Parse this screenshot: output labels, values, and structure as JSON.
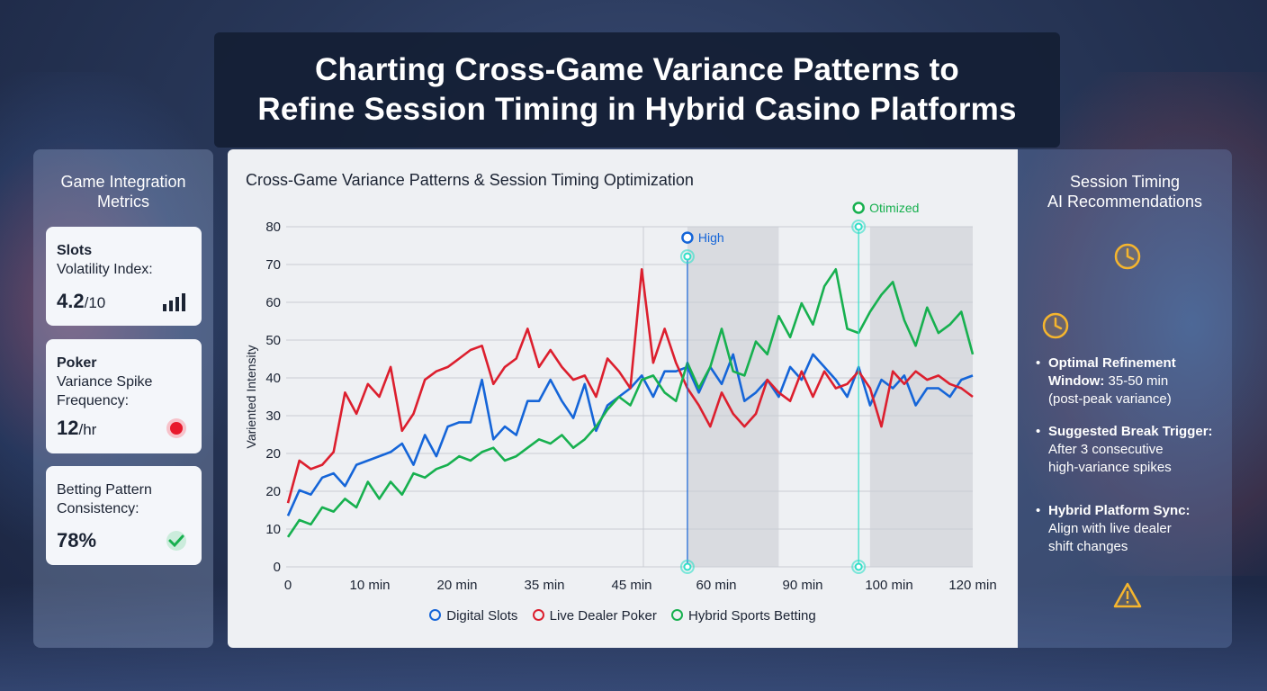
{
  "title_lines": [
    "Charting Cross-Game Variance Patterns to",
    "Refine Session Timing in Hybrid Casino Platforms"
  ],
  "left_panel": {
    "title": "Game Integration\nMetrics",
    "cards": [
      {
        "name": "Slots",
        "sub": "Volatility Index:",
        "value": "4.2",
        "unit": "/10",
        "icon": "bar-chart-icon"
      },
      {
        "name": "Poker",
        "sub": "Variance Spike\nFrequency:",
        "value": "12",
        "unit": "/hr",
        "icon": "red-dot-icon"
      },
      {
        "name": "Betting Pattern",
        "sub": "Consistency:",
        "value": "78%",
        "unit": "",
        "icon": "checkmark-icon"
      }
    ]
  },
  "right_panel": {
    "title": "Session Timing\nAI Recommendations",
    "items": [
      {
        "heading": "Optimal Refinement\nWindow:",
        "heading_tail": " 35-50 min",
        "body": "(post-peak variance)"
      },
      {
        "heading": "Suggested Break Trigger:",
        "heading_tail": "",
        "body": "After 3 consecutive\nhigh-variance spikes"
      },
      {
        "heading": "Hybrid Platform Sync:",
        "heading_tail": "",
        "body": "Align with live dealer\nshift changes"
      }
    ],
    "icons": [
      "clock-icon",
      "clock-icon",
      "warning-icon"
    ]
  },
  "colors": {
    "digital_slots": "#1565d8",
    "live_dealer_poker": "#dc1f2e",
    "hybrid_sports_betting": "#17b04f",
    "glow": "#2fe0c8"
  },
  "chart_data": {
    "type": "line",
    "title": "Cross-Game Variance Patterns & Session Timing Optimization",
    "ylabel": "Variented Intensity",
    "xlabel": "",
    "ylim": [
      0,
      80
    ],
    "xlim": [
      0,
      120
    ],
    "grid": true,
    "y_tick_labels": [
      "0",
      "10",
      "20",
      "20",
      "30",
      "40",
      "50",
      "60",
      "70",
      "80"
    ],
    "x_tick_labels": [
      "0",
      "10 min",
      "20 min",
      "35 min",
      "45 min",
      "60 min",
      "90 min",
      "100 min",
      "120 min"
    ],
    "legend_position": "bottom",
    "shaded_regions": [
      [
        70,
        86
      ],
      [
        102,
        120
      ]
    ],
    "annotations": [
      {
        "label": "High",
        "x": 70,
        "y": 73,
        "series": "digital_slots"
      },
      {
        "label": "Otimized",
        "x": 100,
        "y": 80,
        "series": "glow"
      }
    ],
    "series": [
      {
        "name": "Digital Slots",
        "key": "digital_slots",
        "x": [
          0,
          2,
          4,
          6,
          8,
          10,
          12,
          14,
          16,
          18,
          20,
          22,
          24,
          26,
          28,
          30,
          32,
          34,
          36,
          38,
          40,
          42,
          44,
          46,
          48,
          50,
          52,
          54,
          56,
          58,
          60,
          62,
          64,
          66,
          68,
          70,
          72,
          74,
          76,
          78,
          80,
          82,
          84,
          86,
          88,
          90,
          92,
          94,
          96,
          98,
          100,
          102,
          104,
          106,
          108,
          110,
          112,
          114,
          116,
          118,
          120
        ],
        "values": [
          12,
          18,
          17,
          21,
          22,
          19,
          24,
          25,
          26,
          27,
          29,
          24,
          31,
          26,
          33,
          34,
          34,
          44,
          30,
          33,
          31,
          39,
          39,
          44,
          39,
          35,
          43,
          32,
          38,
          40,
          42,
          45,
          40,
          46,
          46,
          47,
          41,
          47,
          43,
          50,
          39,
          41,
          44,
          40,
          47,
          44,
          50,
          47,
          44,
          40,
          47,
          38,
          44,
          42,
          45,
          38,
          42,
          42,
          40,
          44,
          45
        ]
      },
      {
        "name": "Live Dealer Poker",
        "key": "live_dealer_poker",
        "x": [
          0,
          2,
          4,
          6,
          8,
          10,
          12,
          14,
          16,
          18,
          20,
          22,
          24,
          26,
          28,
          30,
          32,
          34,
          36,
          38,
          40,
          42,
          44,
          46,
          48,
          50,
          52,
          54,
          56,
          58,
          60,
          62,
          64,
          66,
          68,
          70,
          72,
          74,
          76,
          78,
          80,
          82,
          84,
          86,
          88,
          90,
          92,
          94,
          96,
          98,
          100,
          102,
          104,
          106,
          108,
          110,
          112,
          114,
          116,
          118,
          120
        ],
        "values": [
          15,
          25,
          23,
          24,
          27,
          41,
          36,
          43,
          40,
          47,
          32,
          36,
          44,
          46,
          47,
          49,
          51,
          52,
          43,
          47,
          49,
          56,
          47,
          51,
          47,
          44,
          45,
          40,
          49,
          46,
          42,
          70,
          48,
          56,
          48,
          42,
          38,
          33,
          41,
          36,
          33,
          36,
          44,
          41,
          39,
          46,
          40,
          46,
          42,
          43,
          46,
          42,
          33,
          46,
          43,
          46,
          44,
          45,
          43,
          42,
          40
        ]
      },
      {
        "name": "Hybrid Sports Betting",
        "key": "hybrid_sports_betting",
        "x": [
          0,
          2,
          4,
          6,
          8,
          10,
          12,
          14,
          16,
          18,
          20,
          22,
          24,
          26,
          28,
          30,
          32,
          34,
          36,
          38,
          40,
          42,
          44,
          46,
          48,
          50,
          52,
          54,
          56,
          58,
          60,
          62,
          64,
          66,
          68,
          70,
          72,
          74,
          76,
          78,
          80,
          82,
          84,
          86,
          88,
          90,
          92,
          94,
          96,
          98,
          100,
          102,
          104,
          106,
          108,
          110,
          112,
          114,
          116,
          118,
          120
        ],
        "values": [
          7,
          11,
          10,
          14,
          13,
          16,
          14,
          20,
          16,
          20,
          17,
          22,
          21,
          23,
          24,
          26,
          25,
          27,
          28,
          25,
          26,
          28,
          30,
          29,
          31,
          28,
          30,
          33,
          37,
          40,
          38,
          44,
          45,
          41,
          39,
          48,
          42,
          47,
          56,
          46,
          45,
          53,
          50,
          59,
          54,
          62,
          57,
          66,
          70,
          56,
          55,
          60,
          64,
          67,
          58,
          52,
          61,
          55,
          57,
          60,
          50
        ]
      }
    ]
  }
}
